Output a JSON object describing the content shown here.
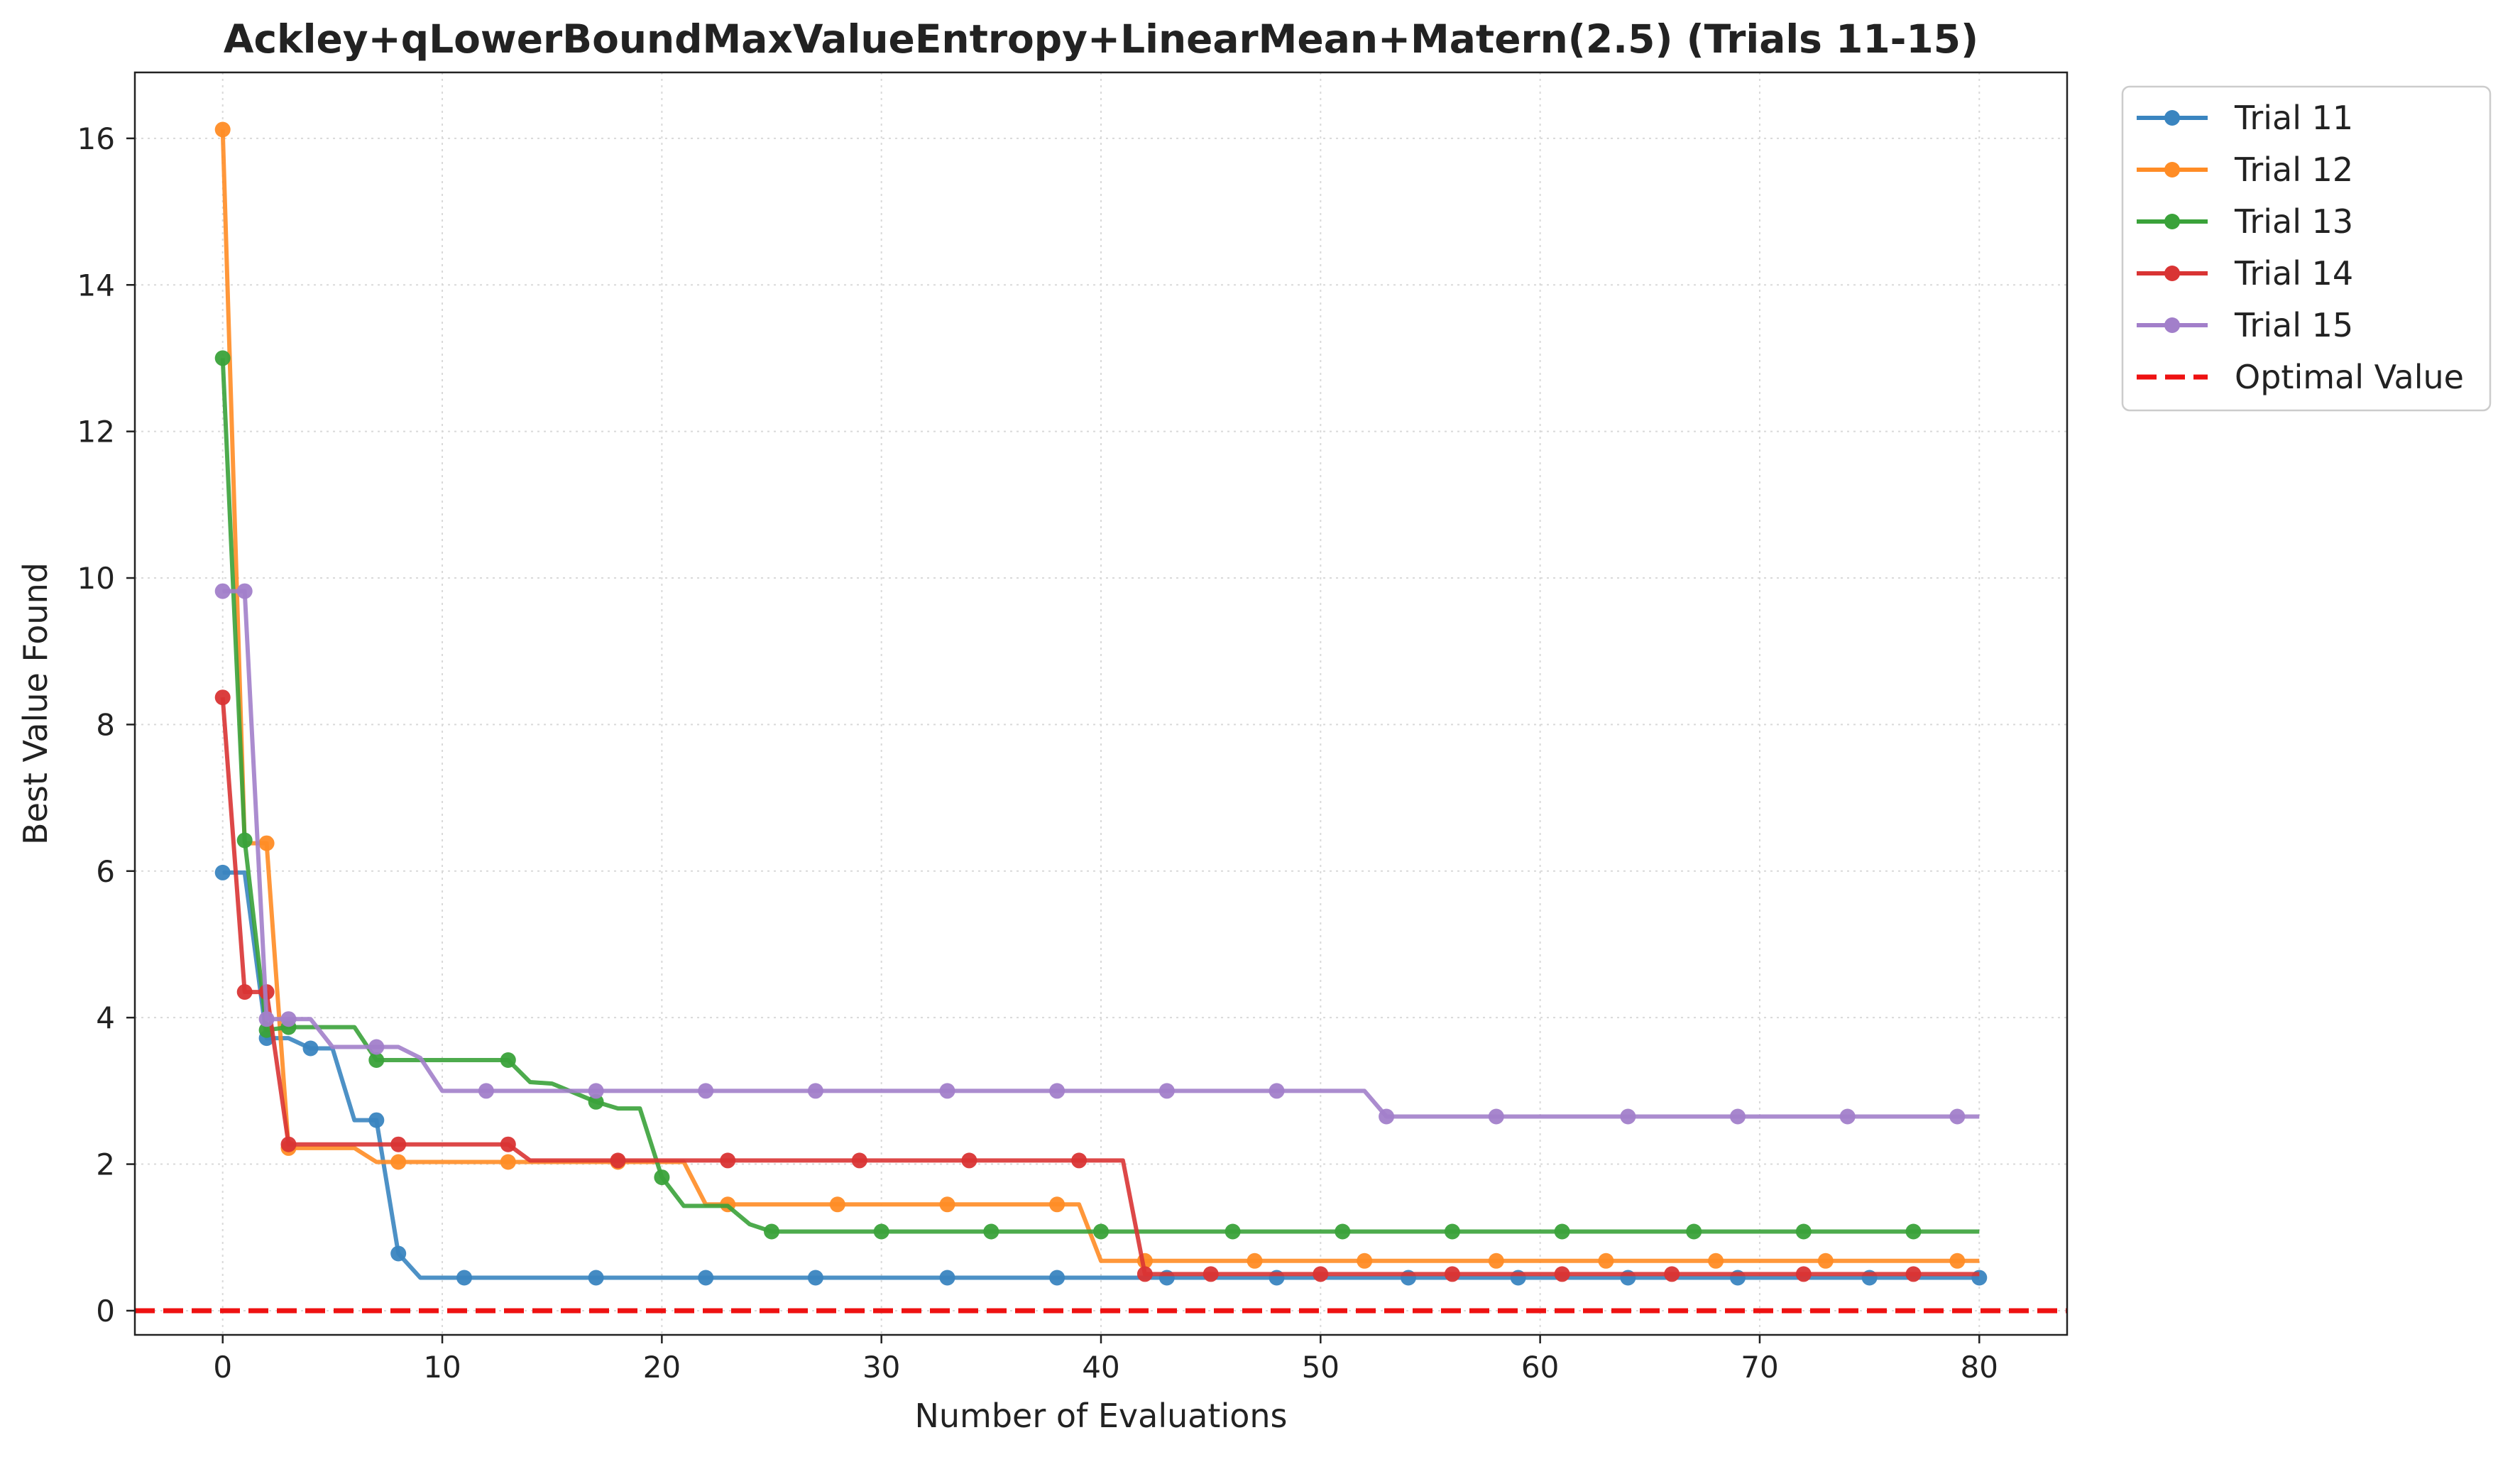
{
  "chart_data": {
    "type": "line",
    "title": "Ackley+qLowerBoundMaxValueEntropy+LinearMean+Matern(2.5) (Trials 11-15)",
    "xlabel": "Number of Evaluations",
    "ylabel": "Best Value Found",
    "xlim": [
      -4,
      84
    ],
    "ylim": [
      -0.33,
      16.9
    ],
    "xticks": [
      0,
      10,
      20,
      30,
      40,
      50,
      60,
      70,
      80
    ],
    "yticks": [
      0,
      2,
      4,
      6,
      8,
      10,
      12,
      14,
      16
    ],
    "grid": true,
    "legend_position": "outside-top-right",
    "optimal_value": 0,
    "optimal_label": "Optimal Value",
    "optimal_color": "#ee1111",
    "series": [
      {
        "name": "Trial 11",
        "color": "#3a85c0",
        "steps": [
          [
            0,
            5.98
          ],
          [
            1,
            5.98
          ],
          [
            2,
            3.72
          ],
          [
            3,
            3.72
          ],
          [
            4,
            3.58
          ],
          [
            5,
            3.58
          ],
          [
            6,
            2.6
          ],
          [
            7,
            2.6
          ],
          [
            8,
            0.78
          ],
          [
            9,
            0.45
          ],
          [
            80,
            0.45
          ]
        ],
        "markers": [
          [
            0,
            5.98
          ],
          [
            2,
            3.72
          ],
          [
            4,
            3.58
          ],
          [
            7,
            2.6
          ],
          [
            8,
            0.78
          ],
          [
            11,
            0.45
          ],
          [
            17,
            0.45
          ],
          [
            22,
            0.45
          ],
          [
            27,
            0.45
          ],
          [
            33,
            0.45
          ],
          [
            38,
            0.45
          ],
          [
            43,
            0.45
          ],
          [
            48,
            0.45
          ],
          [
            54,
            0.45
          ],
          [
            59,
            0.45
          ],
          [
            64,
            0.45
          ],
          [
            69,
            0.45
          ],
          [
            75,
            0.45
          ],
          [
            80,
            0.45
          ]
        ]
      },
      {
        "name": "Trial 12",
        "color": "#ff8c25",
        "steps": [
          [
            0,
            16.12
          ],
          [
            1,
            6.38
          ],
          [
            2,
            6.38
          ],
          [
            3,
            2.22
          ],
          [
            4,
            2.22
          ],
          [
            5,
            2.22
          ],
          [
            6,
            2.22
          ],
          [
            7,
            2.03
          ],
          [
            21,
            2.03
          ],
          [
            22,
            1.45
          ],
          [
            39,
            1.45
          ],
          [
            40,
            0.68
          ],
          [
            80,
            0.68
          ]
        ],
        "markers": [
          [
            0,
            16.12
          ],
          [
            2,
            6.38
          ],
          [
            3,
            2.22
          ],
          [
            8,
            2.03
          ],
          [
            13,
            2.03
          ],
          [
            18,
            2.03
          ],
          [
            23,
            1.45
          ],
          [
            28,
            1.45
          ],
          [
            33,
            1.45
          ],
          [
            38,
            1.45
          ],
          [
            42,
            0.68
          ],
          [
            47,
            0.68
          ],
          [
            52,
            0.68
          ],
          [
            58,
            0.68
          ],
          [
            63,
            0.68
          ],
          [
            68,
            0.68
          ],
          [
            73,
            0.68
          ],
          [
            79,
            0.68
          ]
        ]
      },
      {
        "name": "Trial 13",
        "color": "#3aa23a",
        "steps": [
          [
            0,
            13.0
          ],
          [
            1,
            6.42
          ],
          [
            2,
            3.83
          ],
          [
            3,
            3.87
          ],
          [
            6,
            3.87
          ],
          [
            7,
            3.42
          ],
          [
            13,
            3.42
          ],
          [
            14,
            3.12
          ],
          [
            15,
            3.1
          ],
          [
            17,
            2.85
          ],
          [
            18,
            2.76
          ],
          [
            19,
            2.76
          ],
          [
            20,
            1.82
          ],
          [
            21,
            1.43
          ],
          [
            23,
            1.43
          ],
          [
            24,
            1.18
          ],
          [
            25,
            1.08
          ],
          [
            80,
            1.08
          ]
        ],
        "markers": [
          [
            0,
            13.0
          ],
          [
            1,
            6.42
          ],
          [
            2,
            3.83
          ],
          [
            3,
            3.87
          ],
          [
            7,
            3.42
          ],
          [
            13,
            3.42
          ],
          [
            17,
            2.85
          ],
          [
            20,
            1.82
          ],
          [
            25,
            1.08
          ],
          [
            30,
            1.08
          ],
          [
            35,
            1.08
          ],
          [
            40,
            1.08
          ],
          [
            46,
            1.08
          ],
          [
            51,
            1.08
          ],
          [
            56,
            1.08
          ],
          [
            61,
            1.08
          ],
          [
            67,
            1.08
          ],
          [
            72,
            1.08
          ],
          [
            77,
            1.08
          ]
        ]
      },
      {
        "name": "Trial 14",
        "color": "#d93434",
        "steps": [
          [
            0,
            8.37
          ],
          [
            1,
            4.35
          ],
          [
            2,
            4.35
          ],
          [
            3,
            2.27
          ],
          [
            13,
            2.27
          ],
          [
            14,
            2.05
          ],
          [
            41,
            2.05
          ],
          [
            42,
            0.5
          ],
          [
            80,
            0.5
          ]
        ],
        "markers": [
          [
            0,
            8.37
          ],
          [
            1,
            4.35
          ],
          [
            2,
            4.35
          ],
          [
            3,
            2.27
          ],
          [
            8,
            2.27
          ],
          [
            13,
            2.27
          ],
          [
            18,
            2.05
          ],
          [
            23,
            2.05
          ],
          [
            29,
            2.05
          ],
          [
            34,
            2.05
          ],
          [
            39,
            2.05
          ],
          [
            42,
            0.5
          ],
          [
            45,
            0.5
          ],
          [
            50,
            0.5
          ],
          [
            56,
            0.5
          ],
          [
            61,
            0.5
          ],
          [
            66,
            0.5
          ],
          [
            72,
            0.5
          ],
          [
            77,
            0.5
          ]
        ]
      },
      {
        "name": "Trial 15",
        "color": "#a27fca",
        "steps": [
          [
            0,
            9.82
          ],
          [
            1,
            9.82
          ],
          [
            2,
            3.98
          ],
          [
            3,
            3.98
          ],
          [
            4,
            3.98
          ],
          [
            5,
            3.6
          ],
          [
            7,
            3.6
          ],
          [
            8,
            3.6
          ],
          [
            9,
            3.45
          ],
          [
            10,
            3.0
          ],
          [
            52,
            3.0
          ],
          [
            53,
            2.65
          ],
          [
            80,
            2.65
          ]
        ],
        "markers": [
          [
            0,
            9.82
          ],
          [
            1,
            9.82
          ],
          [
            2,
            3.98
          ],
          [
            3,
            3.98
          ],
          [
            7,
            3.6
          ],
          [
            12,
            3.0
          ],
          [
            17,
            3.0
          ],
          [
            22,
            3.0
          ],
          [
            27,
            3.0
          ],
          [
            33,
            3.0
          ],
          [
            38,
            3.0
          ],
          [
            43,
            3.0
          ],
          [
            48,
            3.0
          ],
          [
            53,
            2.65
          ],
          [
            58,
            2.65
          ],
          [
            64,
            2.65
          ],
          [
            69,
            2.65
          ],
          [
            74,
            2.65
          ],
          [
            79,
            2.65
          ]
        ]
      }
    ]
  }
}
